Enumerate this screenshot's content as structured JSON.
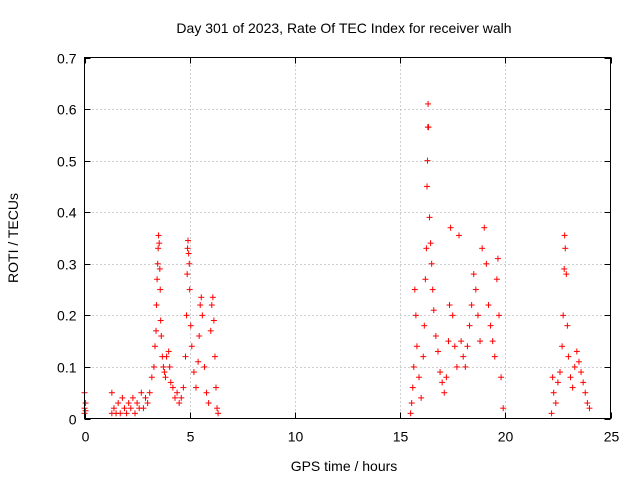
{
  "chart_data": {
    "type": "scatter",
    "title": "Day 301 of 2023, Rate Of TEC Index for receiver walh",
    "xlabel": "GPS time / hours",
    "ylabel": "ROTI / TECUs",
    "xlim": [
      0,
      25
    ],
    "ylim": [
      0,
      0.7
    ],
    "xticks": [
      0,
      5,
      10,
      15,
      20,
      25
    ],
    "yticks": [
      0,
      0.1,
      0.2,
      0.3,
      0.4,
      0.5,
      0.6,
      0.7
    ],
    "grid": true,
    "marker": "+",
    "color": "#ff0000",
    "series": [
      {
        "points": [
          [
            0.0,
            0.01
          ],
          [
            0.0,
            0.02
          ],
          [
            0.0,
            0.05
          ],
          [
            0.05,
            0.03
          ],
          [
            0.05,
            0.015
          ],
          [
            1.3,
            0.01
          ],
          [
            1.3,
            0.05
          ],
          [
            1.4,
            0.02
          ],
          [
            1.5,
            0.01
          ],
          [
            1.6,
            0.03
          ],
          [
            1.7,
            0.01
          ],
          [
            1.8,
            0.04
          ],
          [
            1.9,
            0.02
          ],
          [
            2.0,
            0.01
          ],
          [
            2.1,
            0.03
          ],
          [
            2.2,
            0.02
          ],
          [
            2.3,
            0.04
          ],
          [
            2.4,
            0.01
          ],
          [
            2.5,
            0.03
          ],
          [
            2.6,
            0.02
          ],
          [
            2.7,
            0.05
          ],
          [
            2.8,
            0.02
          ],
          [
            2.9,
            0.04
          ],
          [
            3.0,
            0.03
          ],
          [
            3.1,
            0.05
          ],
          [
            3.2,
            0.08
          ],
          [
            3.3,
            0.1
          ],
          [
            3.35,
            0.14
          ],
          [
            3.4,
            0.17
          ],
          [
            3.42,
            0.22
          ],
          [
            3.45,
            0.27
          ],
          [
            3.48,
            0.3
          ],
          [
            3.5,
            0.33
          ],
          [
            3.52,
            0.355
          ],
          [
            3.55,
            0.34
          ],
          [
            3.58,
            0.29
          ],
          [
            3.6,
            0.25
          ],
          [
            3.62,
            0.19
          ],
          [
            3.65,
            0.16
          ],
          [
            3.7,
            0.12
          ],
          [
            3.75,
            0.1
          ],
          [
            3.8,
            0.09
          ],
          [
            3.85,
            0.08
          ],
          [
            3.9,
            0.12
          ],
          [
            4.0,
            0.13
          ],
          [
            4.05,
            0.1
          ],
          [
            4.1,
            0.07
          ],
          [
            4.2,
            0.06
          ],
          [
            4.3,
            0.04
          ],
          [
            4.4,
            0.05
          ],
          [
            4.5,
            0.03
          ],
          [
            4.6,
            0.04
          ],
          [
            4.7,
            0.06
          ],
          [
            4.8,
            0.12
          ],
          [
            4.85,
            0.2
          ],
          [
            4.88,
            0.28
          ],
          [
            4.9,
            0.33
          ],
          [
            4.92,
            0.345
          ],
          [
            4.95,
            0.32
          ],
          [
            4.98,
            0.3
          ],
          [
            5.0,
            0.25
          ],
          [
            5.05,
            0.18
          ],
          [
            5.1,
            0.14
          ],
          [
            5.2,
            0.09
          ],
          [
            5.3,
            0.06
          ],
          [
            5.4,
            0.11
          ],
          [
            5.45,
            0.16
          ],
          [
            5.5,
            0.22
          ],
          [
            5.55,
            0.235
          ],
          [
            5.6,
            0.2
          ],
          [
            5.7,
            0.1
          ],
          [
            5.8,
            0.05
          ],
          [
            5.9,
            0.03
          ],
          [
            6.0,
            0.17
          ],
          [
            6.05,
            0.22
          ],
          [
            6.1,
            0.235
          ],
          [
            6.15,
            0.19
          ],
          [
            6.2,
            0.12
          ],
          [
            6.25,
            0.06
          ],
          [
            6.3,
            0.02
          ],
          [
            6.35,
            0.01
          ],
          [
            15.5,
            0.01
          ],
          [
            15.55,
            0.03
          ],
          [
            15.6,
            0.06
          ],
          [
            15.65,
            0.1
          ],
          [
            15.7,
            0.25
          ],
          [
            15.75,
            0.2
          ],
          [
            15.8,
            0.14
          ],
          [
            15.9,
            0.08
          ],
          [
            16.0,
            0.04
          ],
          [
            16.1,
            0.12
          ],
          [
            16.15,
            0.18
          ],
          [
            16.2,
            0.27
          ],
          [
            16.25,
            0.33
          ],
          [
            16.28,
            0.45
          ],
          [
            16.3,
            0.5
          ],
          [
            16.32,
            0.565
          ],
          [
            16.33,
            0.61
          ],
          [
            16.35,
            0.565
          ],
          [
            16.4,
            0.39
          ],
          [
            16.45,
            0.34
          ],
          [
            16.5,
            0.3
          ],
          [
            16.55,
            0.25
          ],
          [
            16.6,
            0.21
          ],
          [
            16.7,
            0.16
          ],
          [
            16.8,
            0.13
          ],
          [
            16.9,
            0.09
          ],
          [
            17.0,
            0.07
          ],
          [
            17.1,
            0.05
          ],
          [
            17.2,
            0.08
          ],
          [
            17.3,
            0.15
          ],
          [
            17.35,
            0.22
          ],
          [
            17.4,
            0.37
          ],
          [
            17.5,
            0.2
          ],
          [
            17.6,
            0.14
          ],
          [
            17.7,
            0.1
          ],
          [
            17.8,
            0.355
          ],
          [
            17.9,
            0.15
          ],
          [
            18.0,
            0.12
          ],
          [
            18.1,
            0.1
          ],
          [
            18.2,
            0.14
          ],
          [
            18.3,
            0.18
          ],
          [
            18.4,
            0.22
          ],
          [
            18.5,
            0.28
          ],
          [
            18.6,
            0.25
          ],
          [
            18.7,
            0.2
          ],
          [
            18.8,
            0.15
          ],
          [
            18.9,
            0.33
          ],
          [
            19.0,
            0.37
          ],
          [
            19.1,
            0.3
          ],
          [
            19.2,
            0.22
          ],
          [
            19.3,
            0.18
          ],
          [
            19.4,
            0.15
          ],
          [
            19.5,
            0.12
          ],
          [
            19.6,
            0.27
          ],
          [
            19.65,
            0.31
          ],
          [
            19.7,
            0.2
          ],
          [
            19.8,
            0.08
          ],
          [
            19.9,
            0.02
          ],
          [
            22.2,
            0.01
          ],
          [
            22.25,
            0.08
          ],
          [
            22.3,
            0.05
          ],
          [
            22.4,
            0.03
          ],
          [
            22.5,
            0.07
          ],
          [
            22.6,
            0.09
          ],
          [
            22.7,
            0.14
          ],
          [
            22.75,
            0.2
          ],
          [
            22.8,
            0.29
          ],
          [
            22.82,
            0.355
          ],
          [
            22.85,
            0.33
          ],
          [
            22.9,
            0.28
          ],
          [
            22.95,
            0.18
          ],
          [
            23.0,
            0.12
          ],
          [
            23.1,
            0.08
          ],
          [
            23.2,
            0.06
          ],
          [
            23.3,
            0.1
          ],
          [
            23.4,
            0.13
          ],
          [
            23.5,
            0.11
          ],
          [
            23.6,
            0.09
          ],
          [
            23.7,
            0.07
          ],
          [
            23.8,
            0.05
          ],
          [
            23.9,
            0.03
          ],
          [
            24.0,
            0.02
          ]
        ]
      }
    ]
  }
}
